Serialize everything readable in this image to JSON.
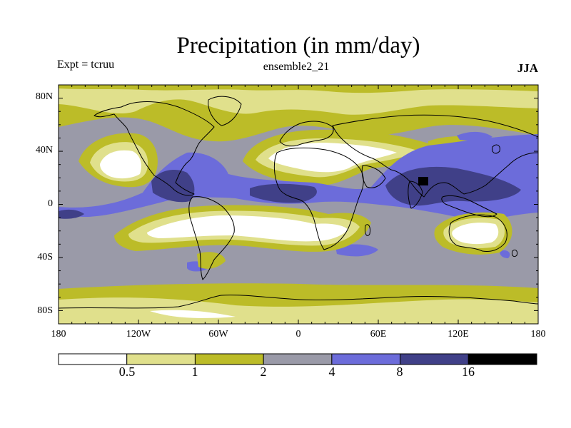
{
  "title": "Precipitation (in mm/day)",
  "subtitle_left": "Expt = tcruu",
  "subtitle_center": "ensemble2_21",
  "subtitle_right": "JJA",
  "lat_labels": [
    "80N",
    "40N",
    "0",
    "40S",
    "80S"
  ],
  "lon_labels": [
    "180",
    "120W",
    "60W",
    "0",
    "60E",
    "120E",
    "180"
  ],
  "colorbar": {
    "labels": [
      "0.5",
      "1",
      "2",
      "4",
      "8",
      "16"
    ],
    "colors": [
      "#ffffff",
      "#e0e08c",
      "#bcbc28",
      "#9a9aa8",
      "#6c6cda",
      "#404088",
      "#000000"
    ]
  },
  "chart_data": {
    "type": "heatmap",
    "title": "Precipitation (in mm/day)",
    "variable": "Precipitation",
    "units": "mm/day",
    "experiment": "tcruu",
    "run": "ensemble2_21",
    "season": "JJA",
    "xlim": [
      -180,
      180
    ],
    "ylim": [
      -90,
      90
    ],
    "levels": [
      0.5,
      1,
      2,
      4,
      8,
      16
    ]
  }
}
